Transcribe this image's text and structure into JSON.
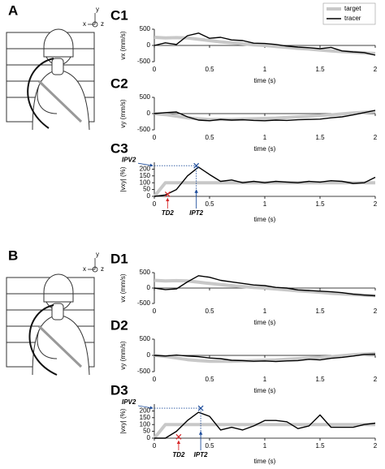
{
  "illustrations": [
    {
      "label": "A",
      "axes": [
        "y",
        "x",
        "z"
      ]
    },
    {
      "label": "B",
      "axes": [
        "y",
        "x",
        "z"
      ]
    }
  ],
  "chart_data": [
    {
      "type": "line",
      "title": "C1",
      "ylabel": "vx (mm/s)",
      "xlabel": "time (s)",
      "x": [
        0,
        0.1,
        0.2,
        0.3,
        0.4,
        0.5,
        0.6,
        0.7,
        0.8,
        0.9,
        1,
        1.1,
        1.2,
        1.3,
        1.4,
        1.5,
        1.6,
        1.7,
        1.8,
        1.9,
        2
      ],
      "xlim": [
        0,
        2
      ],
      "xticks": [
        0,
        0.5,
        1,
        1.5,
        2
      ],
      "ylim": [
        -500,
        500
      ],
      "yticks": [
        -500,
        0,
        500
      ],
      "legend": "upper right",
      "series": [
        {
          "name": "target",
          "color": "#c8c8c8",
          "values": [
            250,
            230,
            240,
            230,
            190,
            150,
            110,
            80,
            50,
            20,
            0,
            -30,
            -60,
            -90,
            -110,
            -140,
            -170,
            -190,
            -210,
            -230,
            -250
          ]
        },
        {
          "name": "tracer",
          "color": "#000000",
          "values": [
            0,
            80,
            30,
            300,
            380,
            220,
            250,
            170,
            150,
            70,
            60,
            30,
            -20,
            -50,
            -70,
            -100,
            -60,
            -170,
            -200,
            -220,
            -300
          ]
        }
      ]
    },
    {
      "type": "line",
      "title": "C2",
      "ylabel": "vy (mm/s)",
      "xlabel": "time (s)",
      "x": [
        0,
        0.1,
        0.2,
        0.3,
        0.4,
        0.5,
        0.6,
        0.7,
        0.8,
        0.9,
        1,
        1.1,
        1.2,
        1.3,
        1.4,
        1.5,
        1.6,
        1.7,
        1.8,
        1.9,
        2
      ],
      "xlim": [
        0,
        2
      ],
      "xticks": [
        0,
        0.5,
        1,
        1.5,
        2
      ],
      "ylim": [
        -500,
        500
      ],
      "yticks": [
        -500,
        0,
        500
      ],
      "series": [
        {
          "color": "#c8c8c8",
          "values": [
            0,
            -30,
            -80,
            -130,
            -160,
            -180,
            -180,
            -180,
            -170,
            -160,
            -150,
            -140,
            -120,
            -100,
            -80,
            -60,
            -40,
            -10,
            20,
            40,
            60
          ]
        },
        {
          "color": "#000000",
          "values": [
            0,
            30,
            50,
            -100,
            -200,
            -220,
            -180,
            -200,
            -190,
            -210,
            -220,
            -200,
            -210,
            -190,
            -180,
            -170,
            -130,
            -100,
            -40,
            30,
            100
          ]
        }
      ]
    },
    {
      "type": "line",
      "title": "C3",
      "ylabel": "|vxy| (%)",
      "xlabel": "time (s)",
      "x": [
        0,
        0.1,
        0.2,
        0.3,
        0.4,
        0.5,
        0.6,
        0.7,
        0.8,
        0.9,
        1,
        1.1,
        1.2,
        1.3,
        1.4,
        1.5,
        1.6,
        1.7,
        1.8,
        1.9,
        2
      ],
      "xlim": [
        0,
        2
      ],
      "xticks": [
        0,
        0.5,
        1,
        1.5,
        2
      ],
      "ylim": [
        0,
        250
      ],
      "yticks": [
        0,
        50,
        100,
        150,
        200
      ],
      "series": [
        {
          "color": "#c8c8c8",
          "values": [
            0,
            100,
            100,
            100,
            100,
            100,
            100,
            100,
            100,
            100,
            100,
            100,
            100,
            100,
            100,
            100,
            100,
            100,
            100,
            100,
            100
          ]
        },
        {
          "color": "#000000",
          "values": [
            0,
            10,
            50,
            150,
            215,
            160,
            110,
            120,
            100,
            110,
            100,
            110,
            105,
            100,
            110,
            105,
            115,
            110,
            95,
            100,
            140
          ]
        }
      ],
      "annotations": [
        {
          "text": "IPV2",
          "y": 225,
          "color": "#1f4e9c"
        },
        {
          "text": "TD2",
          "x": 0.12,
          "y": 15,
          "color": "#d62728"
        },
        {
          "text": "IPT2",
          "x": 0.38,
          "y": 225,
          "color": "#1f4e9c",
          "guides": true
        }
      ]
    },
    {
      "type": "line",
      "title": "D1",
      "ylabel": "vx (mm/s)",
      "xlabel": "time (s)",
      "x": [
        0,
        0.1,
        0.2,
        0.3,
        0.4,
        0.5,
        0.6,
        0.7,
        0.8,
        0.9,
        1,
        1.1,
        1.2,
        1.3,
        1.4,
        1.5,
        1.6,
        1.7,
        1.8,
        1.9,
        2
      ],
      "xlim": [
        0,
        2
      ],
      "xticks": [
        0,
        0.5,
        1,
        1.5,
        2
      ],
      "ylim": [
        -500,
        500
      ],
      "yticks": [
        -500,
        0,
        500
      ],
      "series": [
        {
          "color": "#c8c8c8",
          "values": [
            250,
            230,
            240,
            230,
            190,
            150,
            110,
            80,
            50,
            20,
            0,
            -30,
            -60,
            -90,
            -110,
            -140,
            -170,
            -190,
            -210,
            -230,
            -250
          ]
        },
        {
          "color": "#000000",
          "values": [
            0,
            -50,
            -30,
            200,
            400,
            350,
            250,
            200,
            150,
            100,
            80,
            20,
            0,
            -60,
            -80,
            -100,
            -120,
            -150,
            -200,
            -230,
            -250
          ]
        }
      ]
    },
    {
      "type": "line",
      "title": "D2",
      "ylabel": "vy (mm/s)",
      "xlabel": "time (s)",
      "x": [
        0,
        0.1,
        0.2,
        0.3,
        0.4,
        0.5,
        0.6,
        0.7,
        0.8,
        0.9,
        1,
        1.1,
        1.2,
        1.3,
        1.4,
        1.5,
        1.6,
        1.7,
        1.8,
        1.9,
        2
      ],
      "xlim": [
        0,
        2
      ],
      "xticks": [
        0,
        0.5,
        1,
        1.5,
        2
      ],
      "ylim": [
        -500,
        500
      ],
      "yticks": [
        -500,
        0,
        500
      ],
      "series": [
        {
          "color": "#c8c8c8",
          "values": [
            0,
            -30,
            -80,
            -130,
            -160,
            -180,
            -180,
            -180,
            -170,
            -160,
            -150,
            -140,
            -120,
            -100,
            -80,
            -60,
            -40,
            -10,
            20,
            40,
            60
          ]
        },
        {
          "color": "#000000",
          "values": [
            0,
            -20,
            10,
            -20,
            -40,
            -80,
            -100,
            -150,
            -160,
            -180,
            -170,
            -190,
            -170,
            -160,
            -120,
            -140,
            -90,
            -60,
            -20,
            30,
            40
          ]
        }
      ]
    },
    {
      "type": "line",
      "title": "D3",
      "ylabel": "|vxy| (%)",
      "xlabel": "time (s)",
      "x": [
        0,
        0.1,
        0.2,
        0.3,
        0.4,
        0.5,
        0.6,
        0.7,
        0.8,
        0.9,
        1,
        1.1,
        1.2,
        1.3,
        1.4,
        1.5,
        1.6,
        1.7,
        1.8,
        1.9,
        2
      ],
      "xlim": [
        0,
        2
      ],
      "xticks": [
        0,
        0.5,
        1,
        1.5,
        2
      ],
      "ylim": [
        0,
        250
      ],
      "yticks": [
        0,
        50,
        100,
        150,
        200
      ],
      "series": [
        {
          "color": "#c8c8c8",
          "values": [
            0,
            100,
            100,
            100,
            100,
            100,
            100,
            100,
            100,
            100,
            100,
            100,
            100,
            100,
            100,
            100,
            100,
            100,
            100,
            100,
            100
          ]
        },
        {
          "color": "#000000",
          "values": [
            0,
            0,
            50,
            130,
            190,
            160,
            60,
            80,
            60,
            90,
            130,
            130,
            120,
            70,
            90,
            170,
            80,
            80,
            80,
            100,
            110
          ]
        }
      ],
      "annotations": [
        {
          "text": "IPV2",
          "y": 220,
          "color": "#1f4e9c"
        },
        {
          "text": "TD2",
          "x": 0.22,
          "y": 10,
          "color": "#d62728"
        },
        {
          "text": "IPT2",
          "x": 0.42,
          "y": 220,
          "color": "#1f4e9c",
          "guides": true
        }
      ]
    }
  ]
}
